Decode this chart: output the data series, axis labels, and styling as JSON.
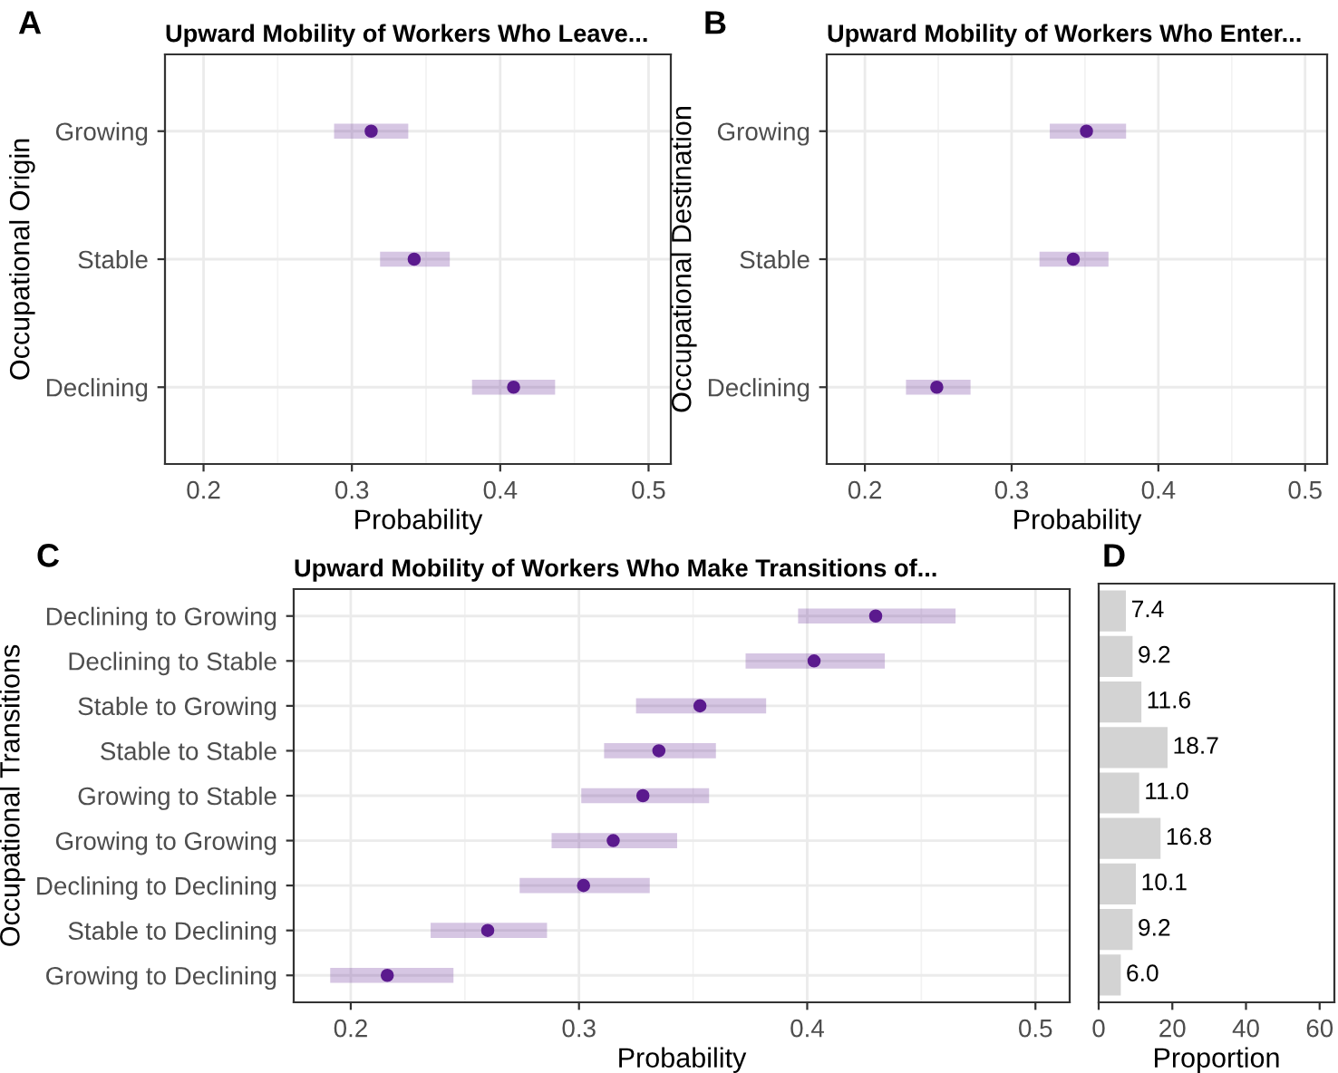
{
  "chart_data": [
    {
      "type": "scatter",
      "orientation": "horizontal",
      "title": "Upward Mobility of Workers Who Leave...",
      "annotations": [
        "A"
      ],
      "xlabel": "Probability",
      "ylabel": "Occupational Origin",
      "categories": [
        "Growing",
        "Stable",
        "Declining"
      ],
      "series": [
        {
          "color": "#5b1a8e",
          "values": [
            0.313,
            0.342,
            0.409
          ],
          "errors": [
            [
              0.288,
              0.338
            ],
            [
              0.319,
              0.366
            ],
            [
              0.381,
              0.437
            ]
          ]
        }
      ],
      "xlim": [
        0.174,
        0.515
      ],
      "xticks": [
        0.2,
        0.3,
        0.4,
        0.5
      ],
      "grid": true,
      "marker": "circle"
    },
    {
      "type": "scatter",
      "orientation": "horizontal",
      "title": "Upward Mobility of Workers Who Enter...",
      "annotations": [
        "B"
      ],
      "xlabel": "Probability",
      "ylabel": "Occupational Destination",
      "categories": [
        "Growing",
        "Stable",
        "Declining"
      ],
      "series": [
        {
          "color": "#5b1a8e",
          "values": [
            0.351,
            0.342,
            0.249
          ],
          "errors": [
            [
              0.326,
              0.378
            ],
            [
              0.319,
              0.366
            ],
            [
              0.228,
              0.272
            ]
          ]
        }
      ],
      "xlim": [
        0.174,
        0.515
      ],
      "xticks": [
        0.2,
        0.3,
        0.4,
        0.5
      ],
      "grid": true,
      "marker": "circle"
    },
    {
      "type": "scatter",
      "orientation": "horizontal",
      "title": "Upward Mobility of Workers Who Make Transitions of...",
      "annotations": [
        "C"
      ],
      "xlabel": "Probability",
      "ylabel": "Occupational Transitions",
      "categories": [
        "Declining to Growing",
        "Declining to Stable",
        "Stable to Growing",
        "Stable to Stable",
        "Growing to Stable",
        "Growing to Growing",
        "Declining to Declining",
        "Stable to Declining",
        "Growing to Declining"
      ],
      "series": [
        {
          "color": "#5b1a8e",
          "values": [
            0.43,
            0.403,
            0.353,
            0.335,
            0.328,
            0.315,
            0.302,
            0.26,
            0.216
          ],
          "errors": [
            [
              0.396,
              0.465
            ],
            [
              0.373,
              0.434
            ],
            [
              0.325,
              0.382
            ],
            [
              0.311,
              0.36
            ],
            [
              0.301,
              0.357
            ],
            [
              0.288,
              0.343
            ],
            [
              0.274,
              0.331
            ],
            [
              0.235,
              0.286
            ],
            [
              0.191,
              0.245
            ]
          ]
        }
      ],
      "xlim": [
        0.175,
        0.515
      ],
      "xticks": [
        0.2,
        0.3,
        0.4,
        0.5
      ],
      "grid": true,
      "marker": "circle"
    },
    {
      "type": "bar",
      "orientation": "horizontal",
      "annotations": [
        "D"
      ],
      "xlabel": "Proportion",
      "categories": [
        null,
        null,
        null,
        null,
        null,
        null,
        null,
        null,
        null
      ],
      "values": [
        7.4,
        9.2,
        11.6,
        18.7,
        11.0,
        16.8,
        10.1,
        9.2,
        6.0
      ],
      "value_labels": [
        "7.4",
        "9.2",
        "11.6",
        "18.7",
        "11.0",
        "16.8",
        "10.1",
        "9.2",
        "6.0"
      ],
      "color": "#d3d3d3",
      "xlim": [
        0,
        64
      ],
      "xticks": [
        0,
        20,
        40,
        60
      ],
      "tick_labels": "x",
      "grid": false
    }
  ]
}
